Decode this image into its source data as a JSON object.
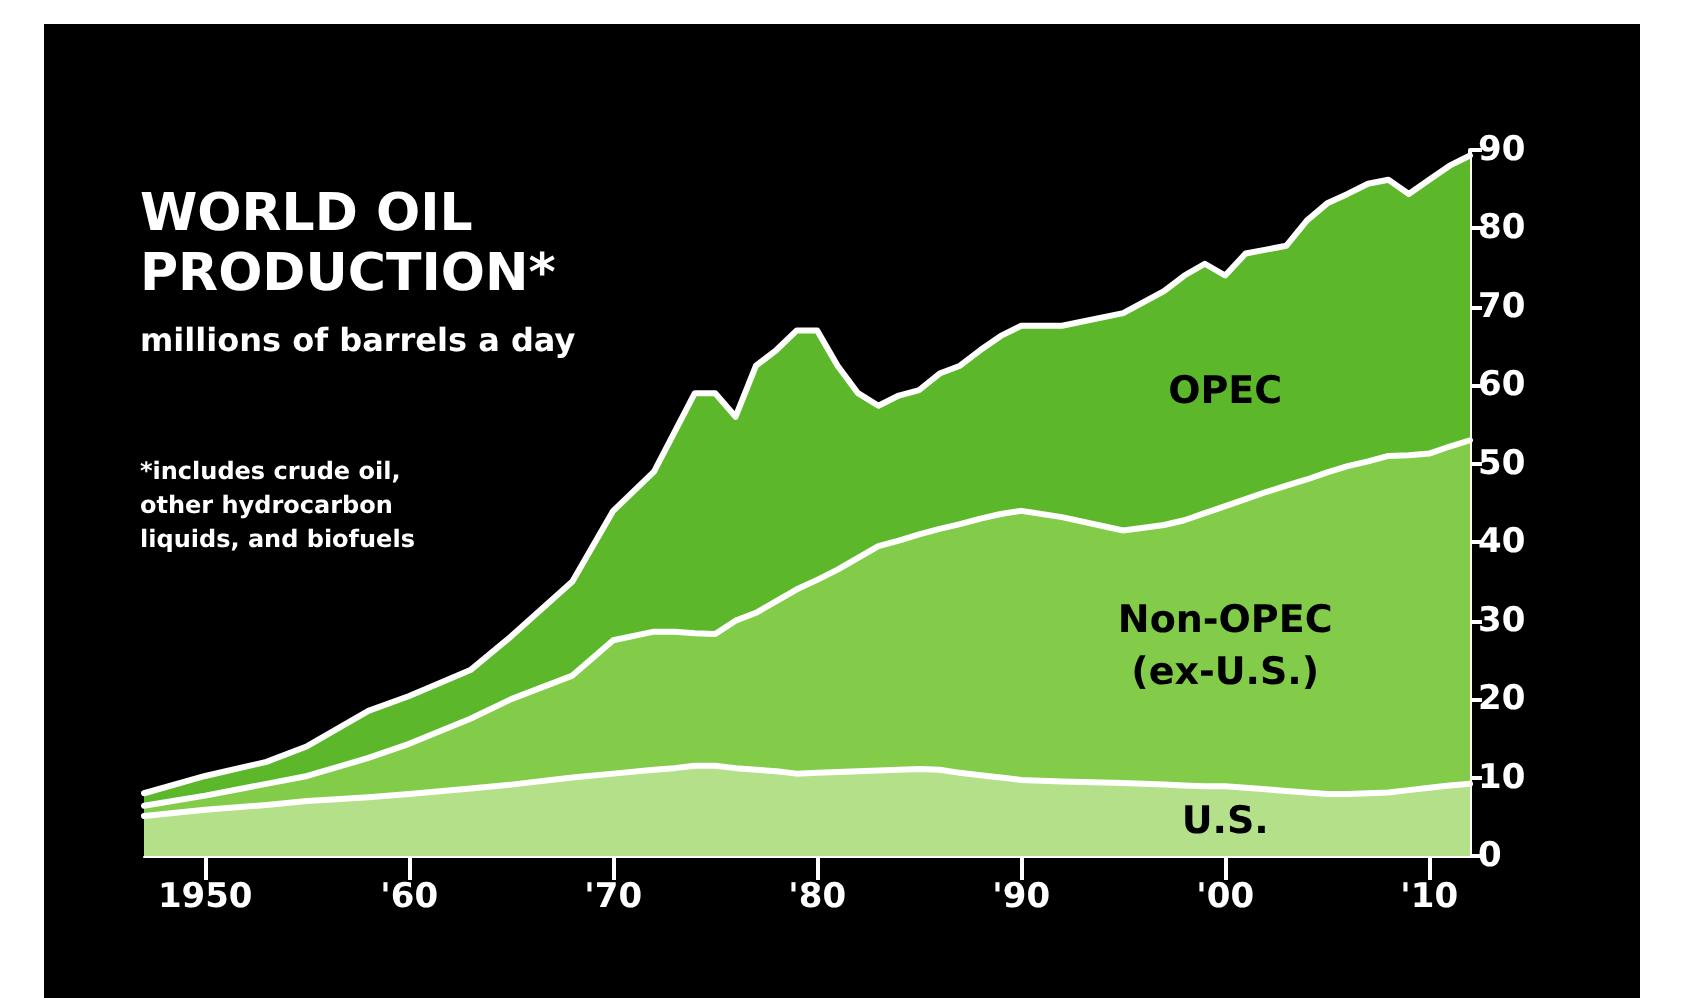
{
  "chart_data": {
    "type": "area",
    "stacked": true,
    "title": "WORLD OIL PRODUCTION*",
    "subtitle": "millions of barrels a day",
    "annotations": [
      "*includes crude oil, other hydrocarbon liquids, and biofuels"
    ],
    "x": [
      1947,
      1950,
      1953,
      1955,
      1958,
      1960,
      1963,
      1965,
      1968,
      1970,
      1972,
      1973,
      1974,
      1975,
      1976,
      1977,
      1978,
      1979,
      1980,
      1981,
      1982,
      1983,
      1984,
      1985,
      1986,
      1987,
      1988,
      1989,
      1990,
      1992,
      1995,
      1997,
      1998,
      1999,
      2000,
      2001,
      2002,
      2003,
      2004,
      2005,
      2006,
      2007,
      2008,
      2009,
      2010,
      2011,
      2012
    ],
    "series": [
      {
        "name": "U.S.",
        "color": "#b4e08a",
        "values": [
          5.1,
          5.9,
          6.5,
          7.0,
          7.5,
          7.9,
          8.6,
          9.1,
          10.0,
          10.5,
          11.0,
          11.2,
          11.5,
          11.5,
          11.2,
          11.0,
          10.8,
          10.5,
          10.6,
          10.7,
          10.8,
          10.9,
          11.0,
          11.1,
          11.0,
          10.6,
          10.3,
          10.0,
          9.7,
          9.5,
          9.3,
          9.1,
          9.0,
          8.9,
          8.9,
          8.7,
          8.5,
          8.3,
          8.1,
          7.9,
          7.9,
          8.0,
          8.1,
          8.4,
          8.7,
          9.0,
          9.2
        ]
      },
      {
        "name": "Non-OPEC (ex-U.S.)",
        "color": "#82cc4a",
        "values": [
          1.3,
          1.8,
          2.7,
          3.2,
          5.0,
          6.4,
          8.9,
          10.9,
          13.0,
          17.0,
          17.6,
          17.4,
          16.9,
          16.8,
          18.8,
          20.0,
          21.7,
          23.5,
          24.6,
          25.8,
          27.2,
          28.6,
          29.2,
          29.9,
          30.7,
          31.7,
          32.7,
          33.6,
          34.3,
          33.7,
          32.2,
          33.1,
          33.8,
          34.8,
          35.7,
          36.8,
          37.9,
          38.9,
          39.9,
          41.0,
          41.8,
          42.3,
          42.9,
          42.7,
          42.6,
          43.2,
          43.8
        ]
      },
      {
        "name": "OPEC",
        "color": "#5cb82a",
        "values": [
          1.6,
          2.5,
          2.8,
          3.8,
          6.0,
          6.1,
          6.2,
          8.0,
          12.0,
          16.5,
          20.4,
          25.4,
          30.6,
          30.7,
          26.0,
          31.5,
          32.0,
          33.0,
          31.8,
          26.0,
          21.0,
          17.9,
          18.5,
          18.4,
          19.8,
          20.2,
          21.5,
          22.7,
          23.6,
          24.4,
          27.7,
          29.8,
          31.2,
          31.8,
          29.4,
          31.3,
          30.9,
          30.6,
          33.0,
          34.3,
          34.7,
          35.4,
          35.2,
          33.3,
          34.9,
          35.8,
          36.3
        ]
      }
    ],
    "xlim": [
      1947,
      2012
    ],
    "xticks": [
      1950,
      {
        "value": 1960,
        "label": "'60"
      },
      {
        "value": 1970,
        "label": "'70"
      },
      {
        "value": 1980,
        "label": "'80"
      },
      {
        "value": 1990,
        "label": "'90"
      },
      {
        "value": 2000,
        "label": "'00"
      },
      {
        "value": 2010,
        "label": "'10"
      }
    ],
    "ylim": [
      0,
      90
    ],
    "yticks": [
      0,
      10,
      20,
      30,
      40,
      50,
      60,
      70,
      80,
      90
    ],
    "grid": false,
    "legend": false,
    "marker": "none",
    "line_style": "solid"
  }
}
